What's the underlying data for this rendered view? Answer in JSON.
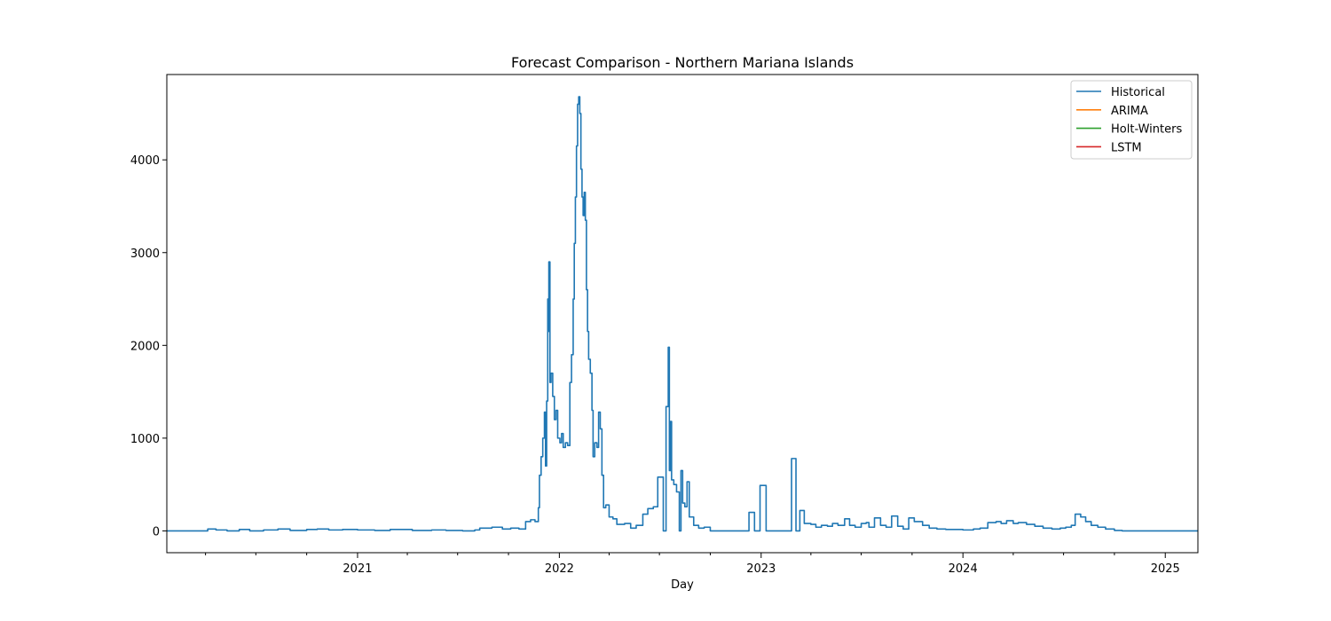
{
  "chart_data": {
    "type": "line",
    "title": "Forecast Comparison - Northern Mariana Islands",
    "xlabel": "Day",
    "ylabel": "",
    "x_tick_labels": [
      "2021",
      "2022",
      "2023",
      "2024",
      "2025"
    ],
    "x_ticks": [
      "2021-01-01",
      "2022-01-01",
      "2023-01-01",
      "2024-01-01",
      "2025-01-01"
    ],
    "xlim": [
      "2020-01-22",
      "2025-03-01"
    ],
    "y_ticks": [
      0,
      1000,
      2000,
      3000,
      4000
    ],
    "ylim": [
      -235,
      4920
    ],
    "grid": false,
    "legend_position": "top-right",
    "legend": [
      "Historical",
      "ARIMA",
      "Holt-Winters",
      "LSTM"
    ],
    "series": [
      {
        "name": "Historical",
        "color": "#1f77b4",
        "step": true,
        "points": [
          [
            "2020-01-22",
            0
          ],
          [
            "2020-04-01",
            0
          ],
          [
            "2020-04-05",
            20
          ],
          [
            "2020-04-20",
            10
          ],
          [
            "2020-05-10",
            0
          ],
          [
            "2020-06-01",
            15
          ],
          [
            "2020-06-20",
            0
          ],
          [
            "2020-07-15",
            10
          ],
          [
            "2020-08-10",
            20
          ],
          [
            "2020-09-01",
            5
          ],
          [
            "2020-10-01",
            15
          ],
          [
            "2020-10-20",
            20
          ],
          [
            "2020-11-10",
            10
          ],
          [
            "2020-12-05",
            15
          ],
          [
            "2021-01-01",
            10
          ],
          [
            "2021-02-01",
            5
          ],
          [
            "2021-03-01",
            15
          ],
          [
            "2021-04-10",
            5
          ],
          [
            "2021-05-15",
            10
          ],
          [
            "2021-06-10",
            5
          ],
          [
            "2021-07-10",
            0
          ],
          [
            "2021-08-01",
            10
          ],
          [
            "2021-08-10",
            30
          ],
          [
            "2021-09-01",
            40
          ],
          [
            "2021-09-20",
            20
          ],
          [
            "2021-10-05",
            30
          ],
          [
            "2021-10-20",
            20
          ],
          [
            "2021-11-01",
            100
          ],
          [
            "2021-11-10",
            120
          ],
          [
            "2021-11-18",
            100
          ],
          [
            "2021-11-24",
            250
          ],
          [
            "2021-11-26",
            600
          ],
          [
            "2021-11-29",
            800
          ],
          [
            "2021-12-02",
            1000
          ],
          [
            "2021-12-05",
            1280
          ],
          [
            "2021-12-07",
            700
          ],
          [
            "2021-12-09",
            1400
          ],
          [
            "2021-12-11",
            2500
          ],
          [
            "2021-12-12",
            2150
          ],
          [
            "2021-12-13",
            2900
          ],
          [
            "2021-12-15",
            1600
          ],
          [
            "2021-12-17",
            1700
          ],
          [
            "2021-12-20",
            1450
          ],
          [
            "2021-12-23",
            1200
          ],
          [
            "2021-12-26",
            1300
          ],
          [
            "2021-12-29",
            1000
          ],
          [
            "2022-01-02",
            950
          ],
          [
            "2022-01-05",
            1050
          ],
          [
            "2022-01-08",
            900
          ],
          [
            "2022-01-12",
            950
          ],
          [
            "2022-01-16",
            920
          ],
          [
            "2022-01-20",
            1600
          ],
          [
            "2022-01-23",
            1900
          ],
          [
            "2022-01-26",
            2500
          ],
          [
            "2022-01-28",
            3100
          ],
          [
            "2022-01-30",
            3600
          ],
          [
            "2022-02-01",
            4150
          ],
          [
            "2022-02-03",
            4600
          ],
          [
            "2022-02-05",
            4680
          ],
          [
            "2022-02-07",
            4500
          ],
          [
            "2022-02-09",
            3900
          ],
          [
            "2022-02-11",
            3600
          ],
          [
            "2022-02-13",
            3400
          ],
          [
            "2022-02-15",
            3650
          ],
          [
            "2022-02-17",
            3350
          ],
          [
            "2022-02-19",
            2600
          ],
          [
            "2022-02-21",
            2150
          ],
          [
            "2022-02-23",
            1850
          ],
          [
            "2022-02-26",
            1700
          ],
          [
            "2022-03-01",
            1300
          ],
          [
            "2022-03-03",
            800
          ],
          [
            "2022-03-06",
            950
          ],
          [
            "2022-03-10",
            900
          ],
          [
            "2022-03-13",
            1280
          ],
          [
            "2022-03-16",
            1100
          ],
          [
            "2022-03-19",
            600
          ],
          [
            "2022-03-22",
            250
          ],
          [
            "2022-03-26",
            280
          ],
          [
            "2022-04-01",
            150
          ],
          [
            "2022-04-08",
            130
          ],
          [
            "2022-04-15",
            70
          ],
          [
            "2022-04-29",
            80
          ],
          [
            "2022-05-10",
            30
          ],
          [
            "2022-05-20",
            60
          ],
          [
            "2022-06-01",
            180
          ],
          [
            "2022-06-10",
            240
          ],
          [
            "2022-06-20",
            260
          ],
          [
            "2022-06-28",
            580
          ],
          [
            "2022-07-08",
            0
          ],
          [
            "2022-07-13",
            1340
          ],
          [
            "2022-07-17",
            1980
          ],
          [
            "2022-07-19",
            650
          ],
          [
            "2022-07-21",
            1180
          ],
          [
            "2022-07-23",
            550
          ],
          [
            "2022-07-27",
            500
          ],
          [
            "2022-08-01",
            420
          ],
          [
            "2022-08-06",
            0
          ],
          [
            "2022-08-09",
            650
          ],
          [
            "2022-08-12",
            300
          ],
          [
            "2022-08-16",
            260
          ],
          [
            "2022-08-20",
            530
          ],
          [
            "2022-08-24",
            150
          ],
          [
            "2022-09-01",
            60
          ],
          [
            "2022-09-10",
            30
          ],
          [
            "2022-09-20",
            40
          ],
          [
            "2022-10-01",
            0
          ],
          [
            "2022-12-01",
            0
          ],
          [
            "2022-12-10",
            200
          ],
          [
            "2022-12-20",
            0
          ],
          [
            "2022-12-30",
            490
          ],
          [
            "2023-01-10",
            0
          ],
          [
            "2023-02-20",
            0
          ],
          [
            "2023-02-25",
            780
          ],
          [
            "2023-03-05",
            0
          ],
          [
            "2023-03-12",
            220
          ],
          [
            "2023-03-20",
            80
          ],
          [
            "2023-04-01",
            70
          ],
          [
            "2023-04-10",
            40
          ],
          [
            "2023-04-20",
            60
          ],
          [
            "2023-05-01",
            50
          ],
          [
            "2023-05-10",
            80
          ],
          [
            "2023-05-20",
            60
          ],
          [
            "2023-06-01",
            130
          ],
          [
            "2023-06-10",
            60
          ],
          [
            "2023-06-20",
            40
          ],
          [
            "2023-07-01",
            80
          ],
          [
            "2023-07-10",
            90
          ],
          [
            "2023-07-15",
            40
          ],
          [
            "2023-07-25",
            140
          ],
          [
            "2023-08-05",
            60
          ],
          [
            "2023-08-15",
            40
          ],
          [
            "2023-08-25",
            160
          ],
          [
            "2023-09-05",
            50
          ],
          [
            "2023-09-15",
            20
          ],
          [
            "2023-09-25",
            140
          ],
          [
            "2023-10-05",
            100
          ],
          [
            "2023-10-20",
            60
          ],
          [
            "2023-11-01",
            30
          ],
          [
            "2023-11-15",
            20
          ],
          [
            "2023-12-01",
            15
          ],
          [
            "2024-01-01",
            10
          ],
          [
            "2024-01-20",
            20
          ],
          [
            "2024-02-01",
            30
          ],
          [
            "2024-02-15",
            90
          ],
          [
            "2024-03-01",
            100
          ],
          [
            "2024-03-10",
            80
          ],
          [
            "2024-03-20",
            110
          ],
          [
            "2024-04-01",
            80
          ],
          [
            "2024-04-10",
            90
          ],
          [
            "2024-04-25",
            70
          ],
          [
            "2024-05-10",
            50
          ],
          [
            "2024-05-25",
            30
          ],
          [
            "2024-06-10",
            20
          ],
          [
            "2024-06-25",
            30
          ],
          [
            "2024-07-05",
            40
          ],
          [
            "2024-07-15",
            60
          ],
          [
            "2024-07-22",
            180
          ],
          [
            "2024-08-01",
            150
          ],
          [
            "2024-08-10",
            100
          ],
          [
            "2024-08-20",
            60
          ],
          [
            "2024-09-01",
            40
          ],
          [
            "2024-09-15",
            20
          ],
          [
            "2024-10-01",
            5
          ],
          [
            "2024-10-15",
            0
          ],
          [
            "2025-03-01",
            0
          ]
        ]
      },
      {
        "name": "ARIMA",
        "color": "#ff7f0e",
        "points": []
      },
      {
        "name": "Holt-Winters",
        "color": "#2ca02c",
        "points": []
      },
      {
        "name": "LSTM",
        "color": "#d62728",
        "points": []
      }
    ]
  }
}
